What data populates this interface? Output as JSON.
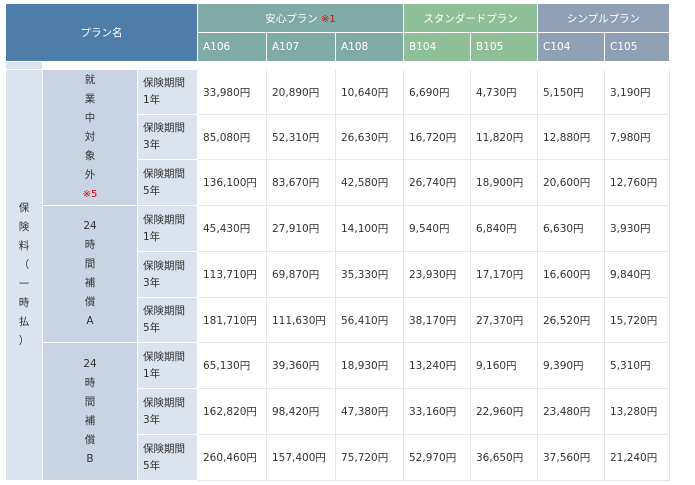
{
  "header": {
    "plan_name": "プラン名",
    "anshin": "安心プラン",
    "anshin_note": "※1",
    "standard": "スタンダードプラン",
    "simple": "シンプルプラン",
    "codes": [
      "A106",
      "A107",
      "A108",
      "B104",
      "B105",
      "C104",
      "C105"
    ]
  },
  "outer_label": [
    "保",
    "険",
    "料",
    "（",
    "一",
    "時",
    "払",
    "）"
  ],
  "groups": [
    {
      "label_lines": [
        "就",
        "業",
        "中",
        "対",
        "象",
        "外"
      ],
      "note": "※5",
      "rows": [
        {
          "period": [
            "保険期間",
            "1年"
          ],
          "prices": [
            "33,980円",
            "20,890円",
            "10,640円",
            "6,690円",
            "4,730円",
            "5,150円",
            "3,190円"
          ]
        },
        {
          "period": [
            "保険期間",
            "3年"
          ],
          "prices": [
            "85,080円",
            "52,310円",
            "26,630円",
            "16,720円",
            "11,820円",
            "12,880円",
            "7,980円"
          ]
        },
        {
          "period": [
            "保険期間",
            "5年"
          ],
          "prices": [
            "136,100円",
            "83,670円",
            "42,580円",
            "26,740円",
            "18,900円",
            "20,600円",
            "12,760円"
          ]
        }
      ]
    },
    {
      "label_lines": [
        "24",
        "時",
        "間",
        "補",
        "償",
        "A"
      ],
      "note": "",
      "rows": [
        {
          "period": [
            "保険期間",
            "1年"
          ],
          "prices": [
            "45,430円",
            "27,910円",
            "14,100円",
            "9,540円",
            "6,840円",
            "6,630円",
            "3,930円"
          ]
        },
        {
          "period": [
            "保険期間",
            "3年"
          ],
          "prices": [
            "113,710円",
            "69,870円",
            "35,330円",
            "23,930円",
            "17,170円",
            "16,600円",
            "9,840円"
          ]
        },
        {
          "period": [
            "保険期間",
            "5年"
          ],
          "prices": [
            "181,710円",
            "111,630円",
            "56,410円",
            "38,170円",
            "27,370円",
            "26,520円",
            "15,720円"
          ]
        }
      ]
    },
    {
      "label_lines": [
        "24",
        "時",
        "間",
        "補",
        "償",
        "B"
      ],
      "note": "",
      "rows": [
        {
          "period": [
            "保険期間",
            "1年"
          ],
          "prices": [
            "65,130円",
            "39,360円",
            "18,930円",
            "13,240円",
            "9,160円",
            "9,390円",
            "5,310円"
          ]
        },
        {
          "period": [
            "保険期間",
            "3年"
          ],
          "prices": [
            "162,820円",
            "98,420円",
            "47,380円",
            "33,160円",
            "22,960円",
            "23,480円",
            "13,280円"
          ]
        },
        {
          "period": [
            "保険期間",
            "5年"
          ],
          "prices": [
            "260,460円",
            "157,400円",
            "75,720円",
            "52,970円",
            "36,650円",
            "37,560円",
            "21,240円"
          ]
        }
      ]
    }
  ],
  "colors": {
    "plan_name_header": "#4f7daa",
    "anshin_header": "#80aaa5",
    "standard_header": "#8fbf97",
    "simple_header": "#8fa0b5",
    "label_light": "#dbe3ee",
    "label_group": "#c8d4e3",
    "note_red": "#d01020"
  }
}
